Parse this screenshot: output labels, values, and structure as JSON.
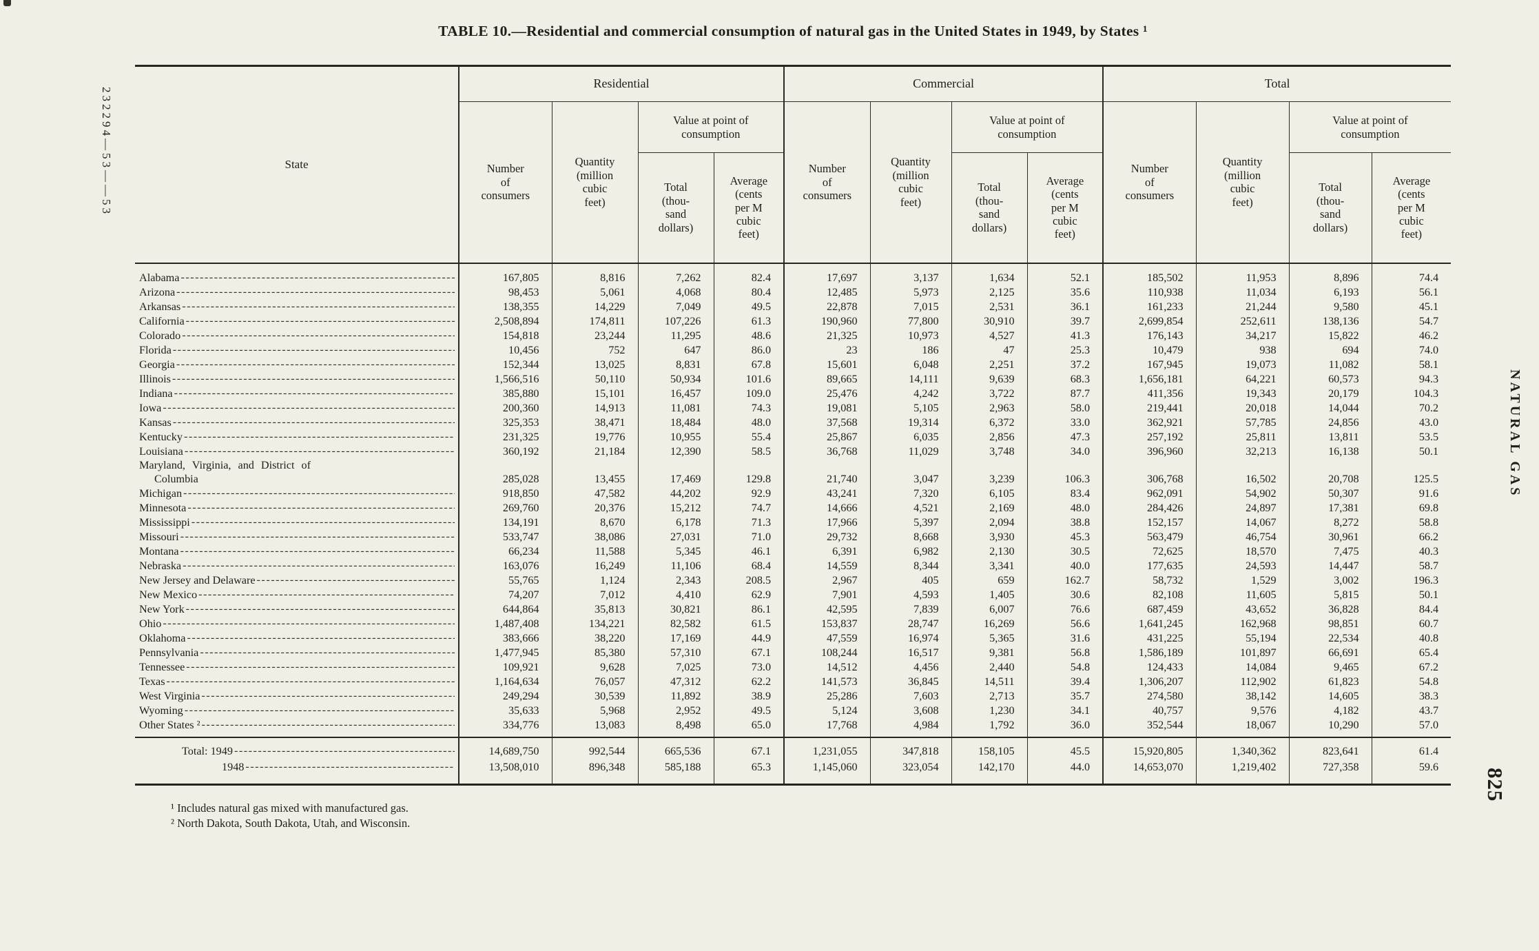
{
  "page": {
    "title": "TABLE 10.—Residential and commercial consumption of natural gas in the United States in 1949, by States ¹",
    "left_margin_code": "232294—53——53",
    "right_margin_text": "NATURAL GAS",
    "page_number": "825",
    "footnotes": [
      "¹ Includes natural gas mixed with manufactured gas.",
      "² North Dakota, South Dakota, Utah, and Wisconsin."
    ],
    "colors": {
      "paper": "#f1eee6",
      "ink": "#201e1a"
    }
  },
  "table": {
    "headers": {
      "state": "State",
      "groups": [
        "Residential",
        "Commercial",
        "Total"
      ],
      "number": "Number\nof\nconsumers",
      "quantity": "Quantity\n(million\ncubic\nfeet)",
      "value": "Value at point of\nconsumption",
      "total": "Total\n(thou-\nsand\ndollars)",
      "average": "Average\n(cents\nper M\ncubic\nfeet)"
    },
    "rows": [
      {
        "state": "Alabama",
        "values": [
          "167,805",
          "8,816",
          "7,262",
          "82.4",
          "17,697",
          "3,137",
          "1,634",
          "52.1",
          "185,502",
          "11,953",
          "8,896",
          "74.4"
        ]
      },
      {
        "state": "Arizona",
        "values": [
          "98,453",
          "5,061",
          "4,068",
          "80.4",
          "12,485",
          "5,973",
          "2,125",
          "35.6",
          "110,938",
          "11,034",
          "6,193",
          "56.1"
        ]
      },
      {
        "state": "Arkansas",
        "values": [
          "138,355",
          "14,229",
          "7,049",
          "49.5",
          "22,878",
          "7,015",
          "2,531",
          "36.1",
          "161,233",
          "21,244",
          "9,580",
          "45.1"
        ]
      },
      {
        "state": "California",
        "values": [
          "2,508,894",
          "174,811",
          "107,226",
          "61.3",
          "190,960",
          "77,800",
          "30,910",
          "39.7",
          "2,699,854",
          "252,611",
          "138,136",
          "54.7"
        ]
      },
      {
        "state": "Colorado",
        "values": [
          "154,818",
          "23,244",
          "11,295",
          "48.6",
          "21,325",
          "10,973",
          "4,527",
          "41.3",
          "176,143",
          "34,217",
          "15,822",
          "46.2"
        ]
      },
      {
        "state": "Florida",
        "values": [
          "10,456",
          "752",
          "647",
          "86.0",
          "23",
          "186",
          "47",
          "25.3",
          "10,479",
          "938",
          "694",
          "74.0"
        ]
      },
      {
        "state": "Georgia",
        "values": [
          "152,344",
          "13,025",
          "8,831",
          "67.8",
          "15,601",
          "6,048",
          "2,251",
          "37.2",
          "167,945",
          "19,073",
          "11,082",
          "58.1"
        ]
      },
      {
        "state": "Illinois",
        "values": [
          "1,566,516",
          "50,110",
          "50,934",
          "101.6",
          "89,665",
          "14,111",
          "9,639",
          "68.3",
          "1,656,181",
          "64,221",
          "60,573",
          "94.3"
        ]
      },
      {
        "state": "Indiana",
        "values": [
          "385,880",
          "15,101",
          "16,457",
          "109.0",
          "25,476",
          "4,242",
          "3,722",
          "87.7",
          "411,356",
          "19,343",
          "20,179",
          "104.3"
        ]
      },
      {
        "state": "Iowa",
        "values": [
          "200,360",
          "14,913",
          "11,081",
          "74.3",
          "19,081",
          "5,105",
          "2,963",
          "58.0",
          "219,441",
          "20,018",
          "14,044",
          "70.2"
        ]
      },
      {
        "state": "Kansas",
        "values": [
          "325,353",
          "38,471",
          "18,484",
          "48.0",
          "37,568",
          "19,314",
          "6,372",
          "33.0",
          "362,921",
          "57,785",
          "24,856",
          "43.0"
        ]
      },
      {
        "state": "Kentucky",
        "values": [
          "231,325",
          "19,776",
          "10,955",
          "55.4",
          "25,867",
          "6,035",
          "2,856",
          "47.3",
          "257,192",
          "25,811",
          "13,811",
          "53.5"
        ]
      },
      {
        "state": "Louisiana",
        "values": [
          "360,192",
          "21,184",
          "12,390",
          "58.5",
          "36,768",
          "11,029",
          "3,748",
          "34.0",
          "396,960",
          "32,213",
          "16,138",
          "50.1"
        ]
      },
      {
        "state": "Maryland, Virginia, and District of\nColumbia",
        "wide": true,
        "no_leader": true,
        "values": [
          "285,028",
          "13,455",
          "17,469",
          "129.8",
          "21,740",
          "3,047",
          "3,239",
          "106.3",
          "306,768",
          "16,502",
          "20,708",
          "125.5"
        ]
      },
      {
        "state": "Michigan",
        "values": [
          "918,850",
          "47,582",
          "44,202",
          "92.9",
          "43,241",
          "7,320",
          "6,105",
          "83.4",
          "962,091",
          "54,902",
          "50,307",
          "91.6"
        ]
      },
      {
        "state": "Minnesota",
        "values": [
          "269,760",
          "20,376",
          "15,212",
          "74.7",
          "14,666",
          "4,521",
          "2,169",
          "48.0",
          "284,426",
          "24,897",
          "17,381",
          "69.8"
        ]
      },
      {
        "state": "Mississippi",
        "values": [
          "134,191",
          "8,670",
          "6,178",
          "71.3",
          "17,966",
          "5,397",
          "2,094",
          "38.8",
          "152,157",
          "14,067",
          "8,272",
          "58.8"
        ]
      },
      {
        "state": "Missouri",
        "values": [
          "533,747",
          "38,086",
          "27,031",
          "71.0",
          "29,732",
          "8,668",
          "3,930",
          "45.3",
          "563,479",
          "46,754",
          "30,961",
          "66.2"
        ]
      },
      {
        "state": "Montana",
        "values": [
          "66,234",
          "11,588",
          "5,345",
          "46.1",
          "6,391",
          "6,982",
          "2,130",
          "30.5",
          "72,625",
          "18,570",
          "7,475",
          "40.3"
        ]
      },
      {
        "state": "Nebraska",
        "values": [
          "163,076",
          "16,249",
          "11,106",
          "68.4",
          "14,559",
          "8,344",
          "3,341",
          "40.0",
          "177,635",
          "24,593",
          "14,447",
          "58.7"
        ]
      },
      {
        "state": "New Jersey and Delaware",
        "values": [
          "55,765",
          "1,124",
          "2,343",
          "208.5",
          "2,967",
          "405",
          "659",
          "162.7",
          "58,732",
          "1,529",
          "3,002",
          "196.3"
        ]
      },
      {
        "state": "New Mexico",
        "values": [
          "74,207",
          "7,012",
          "4,410",
          "62.9",
          "7,901",
          "4,593",
          "1,405",
          "30.6",
          "82,108",
          "11,605",
          "5,815",
          "50.1"
        ]
      },
      {
        "state": "New York",
        "values": [
          "644,864",
          "35,813",
          "30,821",
          "86.1",
          "42,595",
          "7,839",
          "6,007",
          "76.6",
          "687,459",
          "43,652",
          "36,828",
          "84.4"
        ]
      },
      {
        "state": "Ohio",
        "values": [
          "1,487,408",
          "134,221",
          "82,582",
          "61.5",
          "153,837",
          "28,747",
          "16,269",
          "56.6",
          "1,641,245",
          "162,968",
          "98,851",
          "60.7"
        ]
      },
      {
        "state": "Oklahoma",
        "values": [
          "383,666",
          "38,220",
          "17,169",
          "44.9",
          "47,559",
          "16,974",
          "5,365",
          "31.6",
          "431,225",
          "55,194",
          "22,534",
          "40.8"
        ]
      },
      {
        "state": "Pennsylvania",
        "values": [
          "1,477,945",
          "85,380",
          "57,310",
          "67.1",
          "108,244",
          "16,517",
          "9,381",
          "56.8",
          "1,586,189",
          "101,897",
          "66,691",
          "65.4"
        ]
      },
      {
        "state": "Tennessee",
        "values": [
          "109,921",
          "9,628",
          "7,025",
          "73.0",
          "14,512",
          "4,456",
          "2,440",
          "54.8",
          "124,433",
          "14,084",
          "9,465",
          "67.2"
        ]
      },
      {
        "state": "Texas",
        "values": [
          "1,164,634",
          "76,057",
          "47,312",
          "62.2",
          "141,573",
          "36,845",
          "14,511",
          "39.4",
          "1,306,207",
          "112,902",
          "61,823",
          "54.8"
        ]
      },
      {
        "state": "West Virginia",
        "values": [
          "249,294",
          "30,539",
          "11,892",
          "38.9",
          "25,286",
          "7,603",
          "2,713",
          "35.7",
          "274,580",
          "38,142",
          "14,605",
          "38.3"
        ]
      },
      {
        "state": "Wyoming",
        "values": [
          "35,633",
          "5,968",
          "2,952",
          "49.5",
          "5,124",
          "3,608",
          "1,230",
          "34.1",
          "40,757",
          "9,576",
          "4,182",
          "43.7"
        ]
      },
      {
        "state": "Other States ²",
        "values": [
          "334,776",
          "13,083",
          "8,498",
          "65.0",
          "17,768",
          "4,984",
          "1,792",
          "36.0",
          "352,544",
          "18,067",
          "10,290",
          "57.0"
        ]
      }
    ],
    "totals": [
      {
        "label": "Total: 1949",
        "values": [
          "14,689,750",
          "992,544",
          "665,536",
          "67.1",
          "1,231,055",
          "347,818",
          "158,105",
          "45.5",
          "15,920,805",
          "1,340,362",
          "823,641",
          "61.4"
        ]
      },
      {
        "label": "1948",
        "indent": true,
        "values": [
          "13,508,010",
          "896,348",
          "585,188",
          "65.3",
          "1,145,060",
          "323,054",
          "142,170",
          "44.0",
          "14,653,070",
          "1,219,402",
          "727,358",
          "59.6"
        ]
      }
    ]
  }
}
